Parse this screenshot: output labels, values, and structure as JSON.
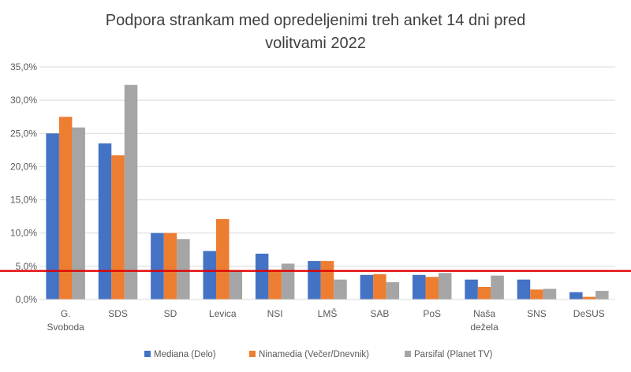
{
  "chart_data": {
    "type": "bar",
    "title_lines": [
      "Podpora strankam med opredeljenimi treh anket 14 dni pred",
      "volitvami 2022"
    ],
    "categories": [
      [
        "G.",
        "Svoboda"
      ],
      [
        "SDS"
      ],
      [
        "SD"
      ],
      [
        "Levica"
      ],
      [
        "NSI"
      ],
      [
        "LMŠ"
      ],
      [
        "SAB"
      ],
      [
        "PoS"
      ],
      [
        "Naša",
        "dežela"
      ],
      [
        "SNS"
      ],
      [
        "DeSUS"
      ]
    ],
    "series": [
      {
        "name": "Mediana (Delo)",
        "color": "#4472c4",
        "values": [
          25.0,
          23.5,
          10.0,
          7.3,
          6.9,
          5.8,
          3.7,
          3.7,
          3.0,
          3.0,
          1.1
        ]
      },
      {
        "name": "Ninamedia (Večer/Dnevnik)",
        "color": "#ed7d31",
        "values": [
          27.5,
          21.7,
          10.0,
          12.1,
          4.5,
          5.8,
          3.8,
          3.4,
          1.9,
          1.5,
          0.4
        ]
      },
      {
        "name": "Parsifal (Planet TV)",
        "color": "#a5a5a5",
        "values": [
          25.9,
          32.3,
          9.1,
          4.3,
          5.4,
          3.0,
          2.6,
          4.0,
          3.6,
          1.6,
          1.3
        ]
      }
    ],
    "ylim": [
      0,
      35
    ],
    "yticks": [
      "0,0%",
      "5,0%",
      "10,0%",
      "15,0%",
      "20,0%",
      "25,0%",
      "30,0%",
      "35,0%"
    ],
    "reference_line": {
      "value": 4.3,
      "color": "#e00000"
    },
    "grid": true,
    "legend_position": "bottom",
    "xlabel": "",
    "ylabel": ""
  }
}
